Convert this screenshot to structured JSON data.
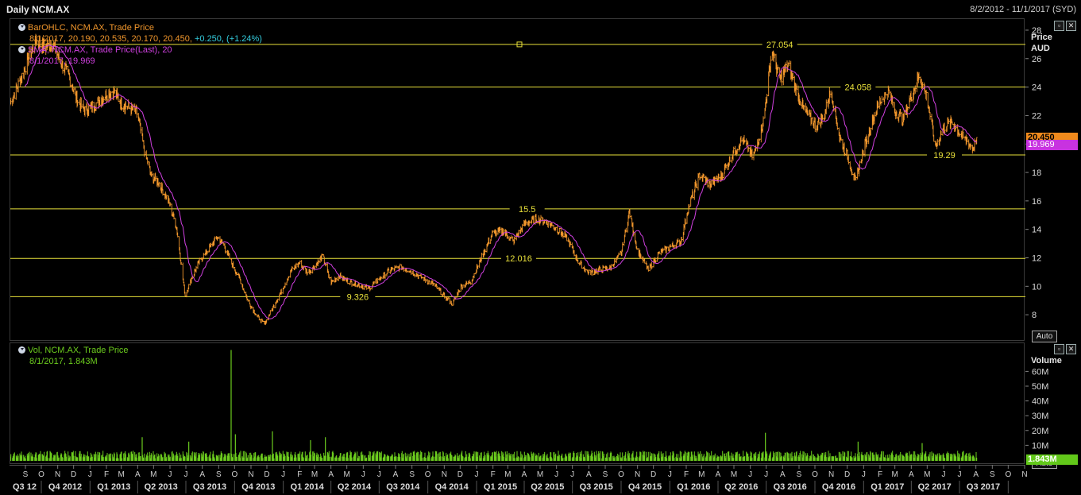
{
  "header": {
    "title": "Daily NCM.AX",
    "date_range": "8/2/2012 - 11/1/2017 (SYD)"
  },
  "price_pane": {
    "legend": {
      "bar_label": "BarOHLC, NCM.AX, Trade Price",
      "bar_values": "8/1/2017, 20.190, 20.535, 20.170, 20.450,",
      "bar_change": "+0.250, (+1.24%)",
      "sma_label": "SMA, NCM.AX, Trade Price(Last),  20",
      "sma_values": "8/1/2017, 19.969"
    },
    "axis_title_1": "Price",
    "axis_title_2": "AUD",
    "last_price_badge": "20.450",
    "sma_badge": "19.969",
    "auto_button": "Auto",
    "colors": {
      "bars": "#f0962c",
      "sma": "#d040e0",
      "levels": "#e8e03a",
      "change": "#33ccdd"
    }
  },
  "volume_pane": {
    "legend": {
      "label": "Vol, NCM.AX, Trade Price",
      "values": "8/1/2017, 1.843M"
    },
    "axis_title": "Volume",
    "last_volume_badge": "1.843M",
    "auto_button": "Auto",
    "color": "#6ccc1e"
  },
  "chart_data": [
    {
      "type": "bar",
      "subtype": "ohlc",
      "x_range": [
        "2012-08-02",
        "2017-11-01"
      ],
      "ylim": [
        6.5,
        28.5
      ],
      "y_ticks": [
        8,
        10,
        12,
        14,
        16,
        18,
        20,
        22,
        24,
        26,
        28
      ],
      "price_path": [
        [
          "2012-08-02",
          22.9
        ],
        [
          "2012-08-20",
          24.5
        ],
        [
          "2012-09-05",
          26.0
        ],
        [
          "2012-09-20",
          27.3
        ],
        [
          "2012-10-05",
          26.8
        ],
        [
          "2012-10-20",
          27.2
        ],
        [
          "2012-11-05",
          25.8
        ],
        [
          "2012-11-20",
          24.9
        ],
        [
          "2012-12-05",
          23.2
        ],
        [
          "2012-12-20",
          22.4
        ],
        [
          "2013-01-08",
          22.8
        ],
        [
          "2013-01-25",
          23.4
        ],
        [
          "2013-02-12",
          23.8
        ],
        [
          "2013-02-28",
          22.9
        ],
        [
          "2013-03-15",
          22.6
        ],
        [
          "2013-03-30",
          22.2
        ],
        [
          "2013-04-12",
          19.6
        ],
        [
          "2013-04-25",
          17.8
        ],
        [
          "2013-05-10",
          17.3
        ],
        [
          "2013-05-28",
          16.0
        ],
        [
          "2013-06-12",
          14.2
        ],
        [
          "2013-06-28",
          9.4
        ],
        [
          "2013-07-10",
          10.6
        ],
        [
          "2013-07-25",
          11.8
        ],
        [
          "2013-08-10",
          12.6
        ],
        [
          "2013-08-28",
          13.5
        ],
        [
          "2013-09-10",
          12.9
        ],
        [
          "2013-09-25",
          11.6
        ],
        [
          "2013-10-10",
          10.5
        ],
        [
          "2013-10-25",
          9.0
        ],
        [
          "2013-11-10",
          8.0
        ],
        [
          "2013-11-25",
          7.4
        ],
        [
          "2013-12-10",
          8.5
        ],
        [
          "2013-12-28",
          9.8
        ],
        [
          "2014-01-15",
          11.2
        ],
        [
          "2014-01-30",
          11.7
        ],
        [
          "2014-02-15",
          11.0
        ],
        [
          "2014-03-01",
          11.5
        ],
        [
          "2014-03-15",
          12.2
        ],
        [
          "2014-03-30",
          10.3
        ],
        [
          "2014-04-15",
          10.8
        ],
        [
          "2014-05-01",
          10.4
        ],
        [
          "2014-05-20",
          10.2
        ],
        [
          "2014-06-10",
          9.9
        ],
        [
          "2014-06-30",
          10.6
        ],
        [
          "2014-07-20",
          11.2
        ],
        [
          "2014-08-10",
          11.4
        ],
        [
          "2014-08-30",
          11.1
        ],
        [
          "2014-09-20",
          10.6
        ],
        [
          "2014-10-10",
          10.2
        ],
        [
          "2014-10-30",
          9.4
        ],
        [
          "2014-11-15",
          8.8
        ],
        [
          "2014-11-30",
          10.0
        ],
        [
          "2014-12-20",
          10.4
        ],
        [
          "2015-01-10",
          12.2
        ],
        [
          "2015-01-30",
          13.8
        ],
        [
          "2015-02-20",
          13.9
        ],
        [
          "2015-03-10",
          13.2
        ],
        [
          "2015-03-30",
          14.4
        ],
        [
          "2015-04-20",
          14.8
        ],
        [
          "2015-05-10",
          14.6
        ],
        [
          "2015-05-30",
          14.1
        ],
        [
          "2015-06-20",
          13.4
        ],
        [
          "2015-07-10",
          11.8
        ],
        [
          "2015-07-30",
          11.0
        ],
        [
          "2015-08-20",
          11.2
        ],
        [
          "2015-09-10",
          11.4
        ],
        [
          "2015-09-30",
          12.4
        ],
        [
          "2015-10-15",
          15.3
        ],
        [
          "2015-10-30",
          12.6
        ],
        [
          "2015-11-20",
          11.2
        ],
        [
          "2015-12-10",
          12.4
        ],
        [
          "2015-12-30",
          12.8
        ],
        [
          "2016-01-20",
          13.2
        ],
        [
          "2016-02-05",
          15.8
        ],
        [
          "2016-02-25",
          17.9
        ],
        [
          "2016-03-15",
          17.2
        ],
        [
          "2016-04-05",
          17.8
        ],
        [
          "2016-04-25",
          19.2
        ],
        [
          "2016-05-15",
          20.4
        ],
        [
          "2016-06-05",
          19.1
        ],
        [
          "2016-06-25",
          21.8
        ],
        [
          "2016-07-10",
          26.6
        ],
        [
          "2016-07-25",
          24.6
        ],
        [
          "2016-08-10",
          25.6
        ],
        [
          "2016-08-25",
          23.8
        ],
        [
          "2016-09-10",
          22.4
        ],
        [
          "2016-09-30",
          21.4
        ],
        [
          "2016-10-15",
          21.8
        ],
        [
          "2016-10-30",
          23.9
        ],
        [
          "2016-11-15",
          20.5
        ],
        [
          "2016-11-30",
          19.2
        ],
        [
          "2016-12-15",
          17.4
        ],
        [
          "2016-12-30",
          19.6
        ],
        [
          "2017-01-15",
          21.6
        ],
        [
          "2017-01-30",
          23.0
        ],
        [
          "2017-02-15",
          23.8
        ],
        [
          "2017-02-28",
          22.4
        ],
        [
          "2017-03-15",
          21.8
        ],
        [
          "2017-03-30",
          23.4
        ],
        [
          "2017-04-15",
          24.9
        ],
        [
          "2017-04-30",
          23.2
        ],
        [
          "2017-05-15",
          19.8
        ],
        [
          "2017-05-30",
          21.2
        ],
        [
          "2017-06-15",
          21.6
        ],
        [
          "2017-06-30",
          20.8
        ],
        [
          "2017-07-15",
          20.2
        ],
        [
          "2017-07-25",
          19.7
        ],
        [
          "2017-08-01",
          20.45
        ]
      ],
      "sma_period": 20,
      "horizontal_levels": [
        27.054,
        24.058,
        19.29,
        15.5,
        12.016,
        9.326
      ],
      "level_labels": [
        {
          "value": 27.054,
          "text": "27.054",
          "at": "2016-07-25"
        },
        {
          "value": 24.058,
          "text": "24.058",
          "at": "2016-12-20"
        },
        {
          "value": 19.29,
          "text": "19.29",
          "at": "2017-06-01"
        },
        {
          "value": 15.5,
          "text": "15.5",
          "at": "2015-04-05"
        },
        {
          "value": 12.016,
          "text": "12.016",
          "at": "2015-03-20"
        },
        {
          "value": 9.326,
          "text": "9.326",
          "at": "2014-05-20"
        }
      ],
      "last": {
        "date": "8/1/2017",
        "open": 20.19,
        "high": 20.535,
        "low": 20.17,
        "close": 20.45,
        "sma": 19.969
      }
    },
    {
      "type": "bar",
      "subtype": "volume",
      "ylim": [
        0,
        70
      ],
      "y_ticks": [
        10,
        20,
        30,
        40,
        50,
        60
      ],
      "y_tick_labels": [
        "10M",
        "20M",
        "30M",
        "40M",
        "50M",
        "60M"
      ],
      "unit": "M",
      "baseline": 4,
      "spikes": [
        {
          "date": "2013-04-08",
          "value": 16
        },
        {
          "date": "2013-07-05",
          "value": 13
        },
        {
          "date": "2013-09-23",
          "value": 75
        },
        {
          "date": "2013-10-01",
          "value": 18
        },
        {
          "date": "2013-12-10",
          "value": 20
        },
        {
          "date": "2014-02-20",
          "value": 14
        },
        {
          "date": "2014-03-20",
          "value": 16
        },
        {
          "date": "2016-06-28",
          "value": 19
        },
        {
          "date": "2016-12-20",
          "value": 13
        },
        {
          "date": "2017-04-20",
          "value": 12
        }
      ],
      "last": {
        "date": "8/1/2017",
        "value": 1.843
      }
    }
  ],
  "x_axis": {
    "months": [
      {
        "d": "2012-09-01",
        "t": "S"
      },
      {
        "d": "2012-10-01",
        "t": "O"
      },
      {
        "d": "2012-11-01",
        "t": "N"
      },
      {
        "d": "2012-12-01",
        "t": "D"
      },
      {
        "d": "2013-01-01",
        "t": "J"
      },
      {
        "d": "2013-02-01",
        "t": "F"
      },
      {
        "d": "2013-03-01",
        "t": "M"
      },
      {
        "d": "2013-04-01",
        "t": "A"
      },
      {
        "d": "2013-05-01",
        "t": "M"
      },
      {
        "d": "2013-06-01",
        "t": "J"
      },
      {
        "d": "2013-07-01",
        "t": "J"
      },
      {
        "d": "2013-08-01",
        "t": "A"
      },
      {
        "d": "2013-09-01",
        "t": "S"
      },
      {
        "d": "2013-10-01",
        "t": "O"
      },
      {
        "d": "2013-11-01",
        "t": "N"
      },
      {
        "d": "2013-12-01",
        "t": "D"
      },
      {
        "d": "2014-01-01",
        "t": "J"
      },
      {
        "d": "2014-02-01",
        "t": "F"
      },
      {
        "d": "2014-03-01",
        "t": "M"
      },
      {
        "d": "2014-04-01",
        "t": "A"
      },
      {
        "d": "2014-05-01",
        "t": "M"
      },
      {
        "d": "2014-06-01",
        "t": "J"
      },
      {
        "d": "2014-07-01",
        "t": "J"
      },
      {
        "d": "2014-08-01",
        "t": "A"
      },
      {
        "d": "2014-09-01",
        "t": "S"
      },
      {
        "d": "2014-10-01",
        "t": "O"
      },
      {
        "d": "2014-11-01",
        "t": "N"
      },
      {
        "d": "2014-12-01",
        "t": "D"
      },
      {
        "d": "2015-01-01",
        "t": "J"
      },
      {
        "d": "2015-02-01",
        "t": "F"
      },
      {
        "d": "2015-03-01",
        "t": "M"
      },
      {
        "d": "2015-04-01",
        "t": "A"
      },
      {
        "d": "2015-05-01",
        "t": "M"
      },
      {
        "d": "2015-06-01",
        "t": "J"
      },
      {
        "d": "2015-07-01",
        "t": "J"
      },
      {
        "d": "2015-08-01",
        "t": "A"
      },
      {
        "d": "2015-09-01",
        "t": "S"
      },
      {
        "d": "2015-10-01",
        "t": "O"
      },
      {
        "d": "2015-11-01",
        "t": "N"
      },
      {
        "d": "2015-12-01",
        "t": "D"
      },
      {
        "d": "2016-01-01",
        "t": "J"
      },
      {
        "d": "2016-02-01",
        "t": "F"
      },
      {
        "d": "2016-03-01",
        "t": "M"
      },
      {
        "d": "2016-04-01",
        "t": "A"
      },
      {
        "d": "2016-05-01",
        "t": "M"
      },
      {
        "d": "2016-06-01",
        "t": "J"
      },
      {
        "d": "2016-07-01",
        "t": "J"
      },
      {
        "d": "2016-08-01",
        "t": "A"
      },
      {
        "d": "2016-09-01",
        "t": "S"
      },
      {
        "d": "2016-10-01",
        "t": "O"
      },
      {
        "d": "2016-11-01",
        "t": "N"
      },
      {
        "d": "2016-12-01",
        "t": "D"
      },
      {
        "d": "2017-01-01",
        "t": "J"
      },
      {
        "d": "2017-02-01",
        "t": "F"
      },
      {
        "d": "2017-03-01",
        "t": "M"
      },
      {
        "d": "2017-04-01",
        "t": "A"
      },
      {
        "d": "2017-05-01",
        "t": "M"
      },
      {
        "d": "2017-06-01",
        "t": "J"
      },
      {
        "d": "2017-07-01",
        "t": "J"
      },
      {
        "d": "2017-08-01",
        "t": "A"
      },
      {
        "d": "2017-09-01",
        "t": "S"
      },
      {
        "d": "2017-10-01",
        "t": "O"
      },
      {
        "d": "2017-11-01",
        "t": "N"
      }
    ],
    "quarters": [
      {
        "d": "2012-08-15",
        "t": "Q3 12"
      },
      {
        "d": "2012-11-15",
        "t": "Q4 2012"
      },
      {
        "d": "2013-02-15",
        "t": "Q1 2013"
      },
      {
        "d": "2013-05-15",
        "t": "Q2 2013"
      },
      {
        "d": "2013-08-15",
        "t": "Q3 2013"
      },
      {
        "d": "2013-11-15",
        "t": "Q4 2013"
      },
      {
        "d": "2014-02-15",
        "t": "Q1 2014"
      },
      {
        "d": "2014-05-15",
        "t": "Q2 2014"
      },
      {
        "d": "2014-08-15",
        "t": "Q3 2014"
      },
      {
        "d": "2014-11-15",
        "t": "Q4 2014"
      },
      {
        "d": "2015-02-15",
        "t": "Q1 2015"
      },
      {
        "d": "2015-05-15",
        "t": "Q2 2015"
      },
      {
        "d": "2015-08-15",
        "t": "Q3 2015"
      },
      {
        "d": "2015-11-15",
        "t": "Q4 2015"
      },
      {
        "d": "2016-02-15",
        "t": "Q1 2016"
      },
      {
        "d": "2016-05-15",
        "t": "Q2 2016"
      },
      {
        "d": "2016-08-15",
        "t": "Q3 2016"
      },
      {
        "d": "2016-11-15",
        "t": "Q4 2016"
      },
      {
        "d": "2017-02-15",
        "t": "Q1 2017"
      },
      {
        "d": "2017-05-15",
        "t": "Q2 2017"
      },
      {
        "d": "2017-08-15",
        "t": "Q3 2017"
      }
    ]
  }
}
